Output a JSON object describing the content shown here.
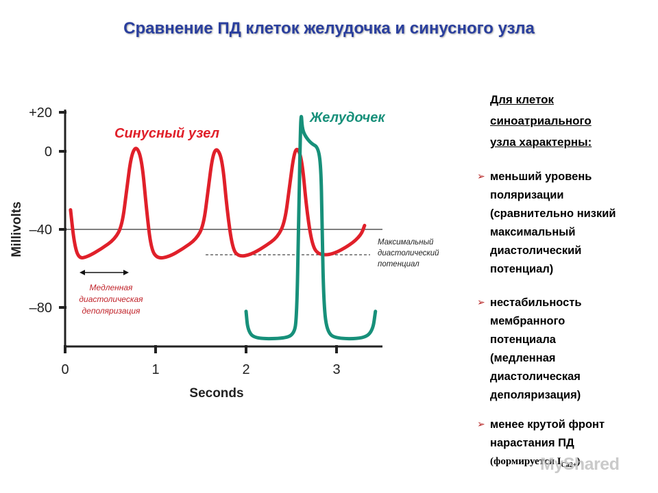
{
  "slide": {
    "title": "Сравнение ПД клеток желудочка и синусного узла"
  },
  "chart_data": {
    "type": "line",
    "xlabel": "Seconds",
    "ylabel": "Millivolts",
    "xlim": [
      0,
      3.5
    ],
    "ylim": [
      -100,
      25
    ],
    "x_ticks": [
      "0",
      "1",
      "2",
      "3"
    ],
    "y_ticks": [
      "+20",
      "0",
      "–40",
      "–80"
    ],
    "reference_line_mv": -40,
    "max_diastolic_line_mv": -53,
    "series": [
      {
        "name": "Синусный узел",
        "color": "#e0202a",
        "points": [
          [
            0.06,
            -30
          ],
          [
            0.1,
            -47
          ],
          [
            0.15,
            -55
          ],
          [
            0.25,
            -54
          ],
          [
            0.4,
            -50
          ],
          [
            0.55,
            -45
          ],
          [
            0.63,
            -38
          ],
          [
            0.68,
            -20
          ],
          [
            0.73,
            -2
          ],
          [
            0.79,
            3
          ],
          [
            0.85,
            -5
          ],
          [
            0.9,
            -30
          ],
          [
            0.95,
            -50
          ],
          [
            1.02,
            -55
          ],
          [
            1.15,
            -54
          ],
          [
            1.3,
            -50
          ],
          [
            1.45,
            -45
          ],
          [
            1.53,
            -38
          ],
          [
            1.58,
            -20
          ],
          [
            1.63,
            -2
          ],
          [
            1.68,
            2
          ],
          [
            1.74,
            -5
          ],
          [
            1.79,
            -30
          ],
          [
            1.85,
            -50
          ],
          [
            1.92,
            -54
          ],
          [
            2.05,
            -53
          ],
          [
            2.2,
            -49
          ],
          [
            2.35,
            -44
          ],
          [
            2.43,
            -36
          ],
          [
            2.48,
            -18
          ],
          [
            2.53,
            -1
          ],
          [
            2.57,
            2
          ],
          [
            2.62,
            -5
          ],
          [
            2.67,
            -30
          ],
          [
            2.73,
            -48
          ],
          [
            2.8,
            -53
          ],
          [
            2.95,
            -53
          ],
          [
            3.15,
            -48
          ],
          [
            3.27,
            -43
          ],
          [
            3.31,
            -38
          ]
        ]
      },
      {
        "name": "Желудочек",
        "color": "#17907a",
        "points": [
          [
            2.0,
            -82
          ],
          [
            2.02,
            -92
          ],
          [
            2.1,
            -96
          ],
          [
            2.4,
            -96
          ],
          [
            2.53,
            -94
          ],
          [
            2.56,
            -85
          ],
          [
            2.58,
            -40
          ],
          [
            2.6,
            10
          ],
          [
            2.61,
            20
          ],
          [
            2.62,
            12
          ],
          [
            2.65,
            8
          ],
          [
            2.72,
            4
          ],
          [
            2.8,
            2
          ],
          [
            2.83,
            -10
          ],
          [
            2.84,
            -40
          ],
          [
            2.86,
            -80
          ],
          [
            2.9,
            -93
          ],
          [
            3.0,
            -96
          ],
          [
            3.3,
            -96
          ],
          [
            3.4,
            -92
          ],
          [
            3.43,
            -82
          ]
        ]
      }
    ],
    "annotations": {
      "slow_depolarization": "Медленная диастолическая деполяризация",
      "max_diastolic": "Максимальный диастолический потенциал"
    }
  },
  "panel": {
    "heading_lines": [
      "Для клеток",
      "синоатриального",
      "узла характерны:"
    ],
    "bullet_icon": "arrow-bullet-icon",
    "bullets": [
      [
        "меньший уровень",
        "поляризации",
        "(сравнительно низкий",
        "максимальный",
        "диастолический",
        "потенциал)"
      ],
      [
        "нестабильность",
        "мембранного",
        "потенциала",
        "(медленная",
        "диастолическая",
        "деполяризация)"
      ],
      [
        "менее крутой фронт",
        "нарастания ПД"
      ]
    ],
    "formula": {
      "prefix": "(формируется I",
      "subscript": "Ca2+",
      "suffix": ")"
    }
  },
  "watermark": "MyShared"
}
